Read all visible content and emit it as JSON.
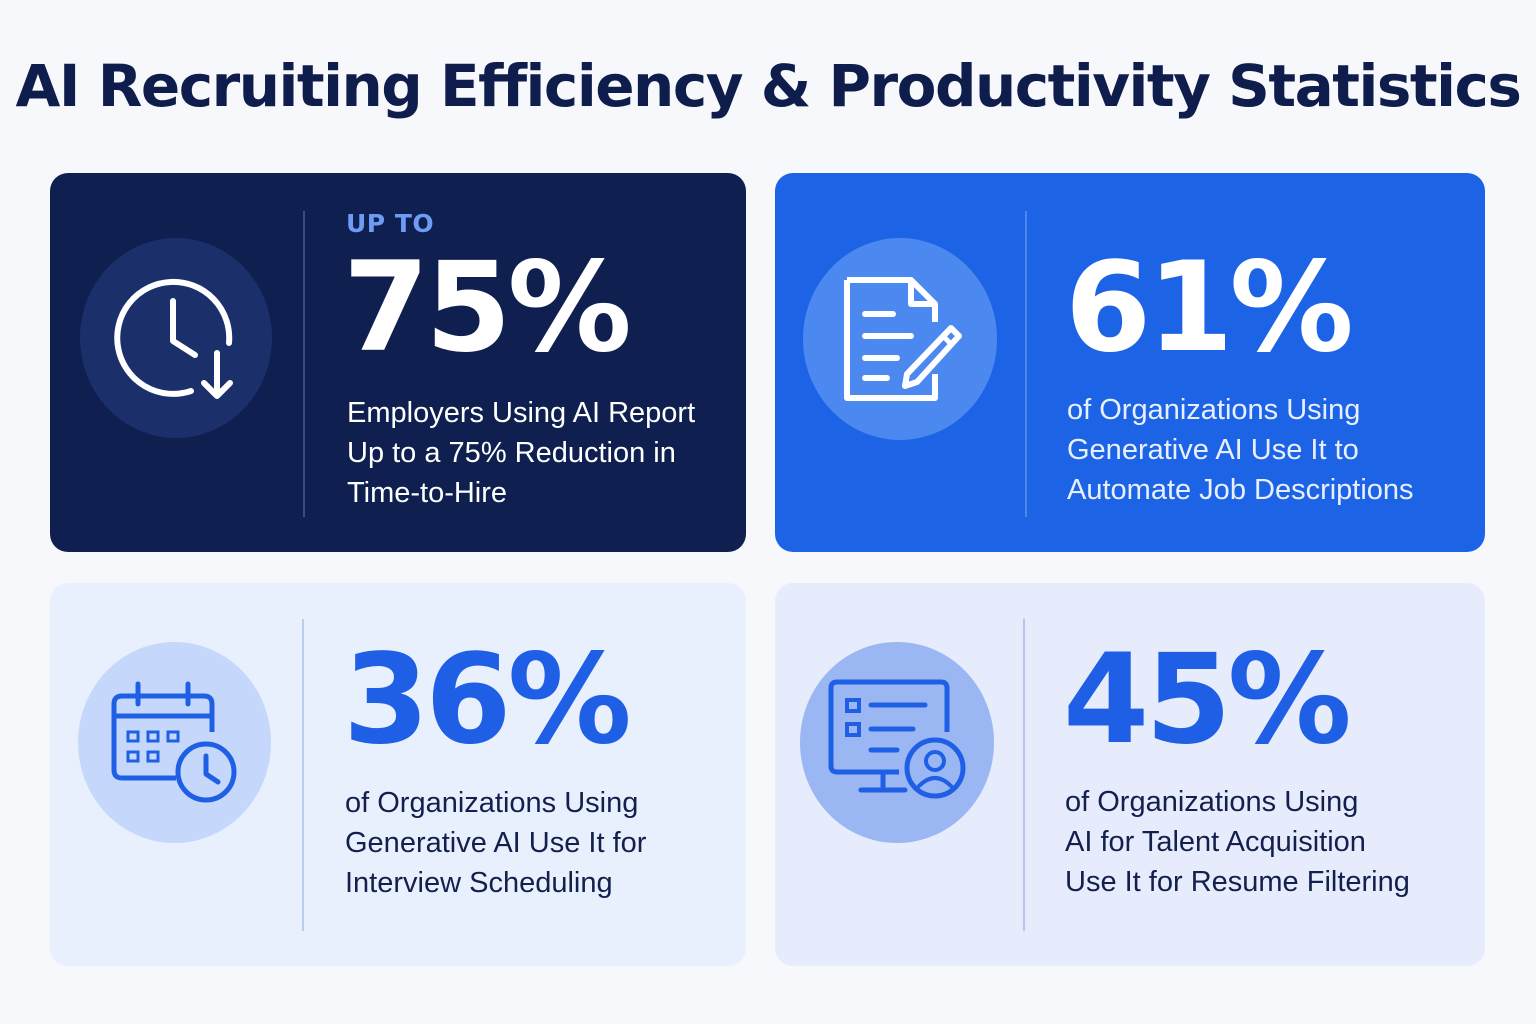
{
  "title": "AI Recruiting Efficiency & Productivity Statistics",
  "cards": [
    {
      "eyebrow": "UP TO",
      "stat": "75%",
      "lines": [
        "Employers Using AI Report",
        "Up to a 75% Reduction in",
        "Time-to-Hire"
      ],
      "icon": "clock-down-arrow-icon"
    },
    {
      "stat": "61%",
      "lines": [
        "of Organizations Using",
        "Generative AI Use It to",
        "Automate Job Descriptions"
      ],
      "icon": "document-pencil-icon"
    },
    {
      "stat": "36%",
      "lines": [
        "of Organizations Using",
        "Generative AI Use It for",
        "Interview Scheduling"
      ],
      "icon": "calendar-clock-icon"
    },
    {
      "stat": "45%",
      "lines": [
        "of Organizations Using",
        "AI for Talent Acquisition",
        "Use It for Resume Filtering"
      ],
      "icon": "monitor-user-icon"
    }
  ],
  "colors": {
    "title": "#0f1d4c",
    "card_dark": "#0f1f4f",
    "card_blue": "#1d63e6",
    "card_light": "#e9f0fd",
    "accent": "#1f5fe6"
  }
}
